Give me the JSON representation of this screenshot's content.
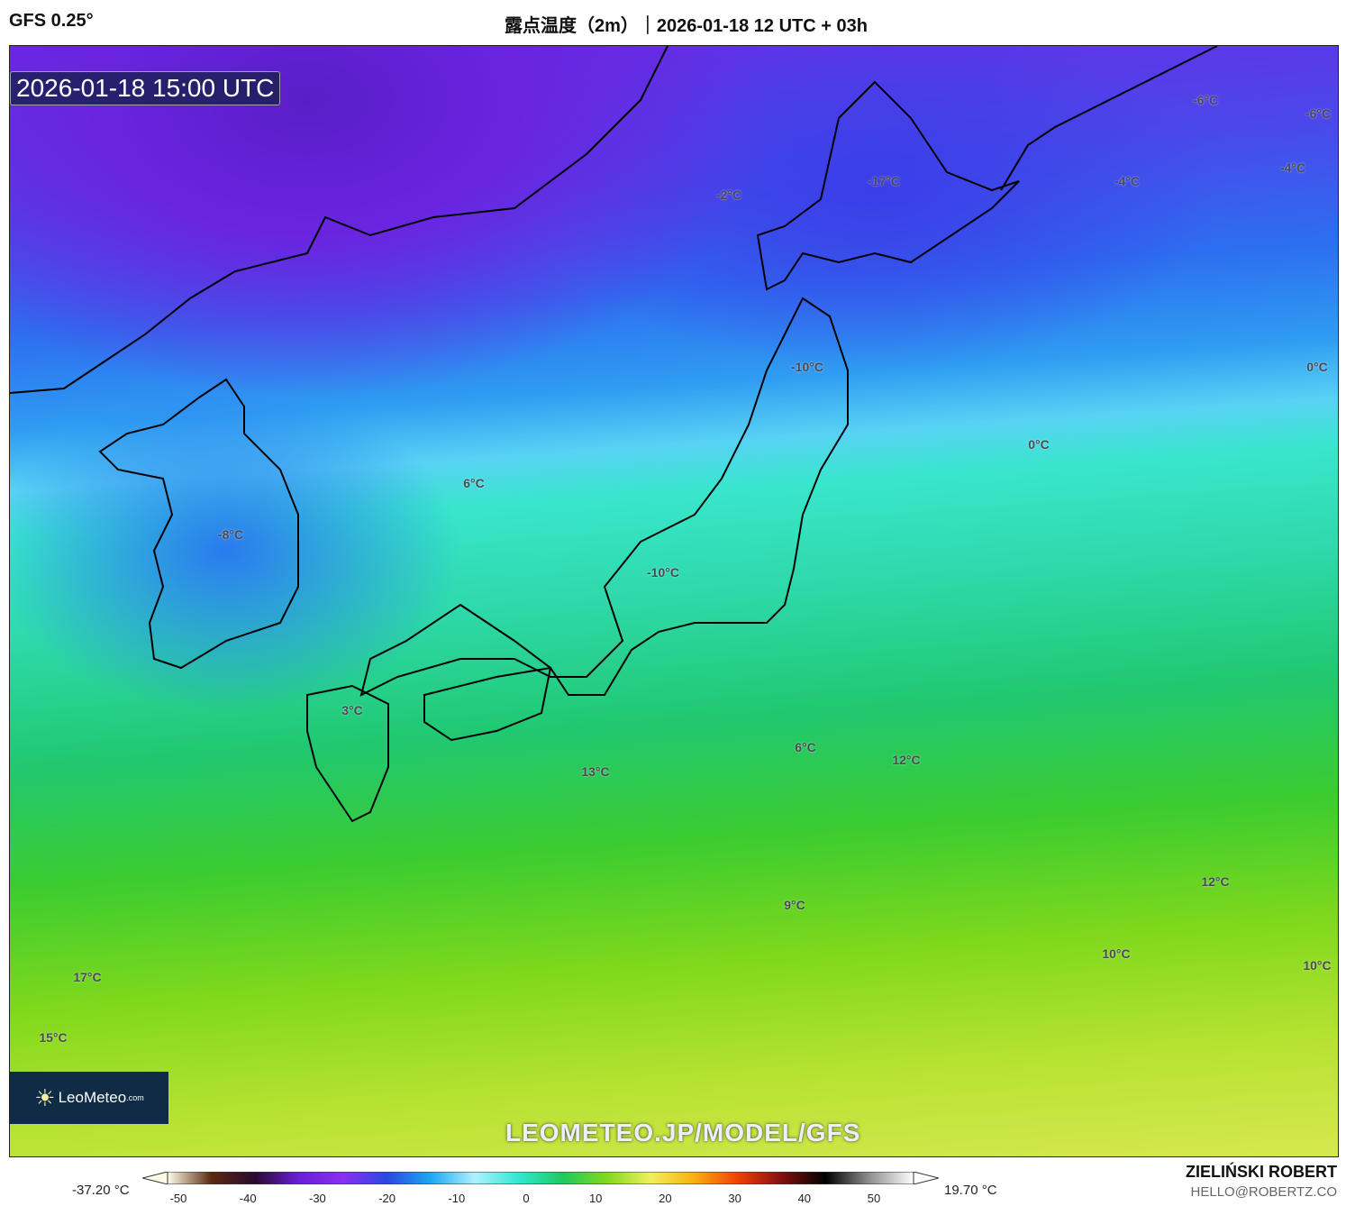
{
  "header": {
    "model": "GFS 0.25°",
    "title": "露点温度（2m）｜2026-01-18 12 UTC + 03h"
  },
  "map": {
    "valid_time": "2026-01-18 15:00 UTC",
    "labels": [
      "-6°C",
      "-6°C",
      "-2°C",
      "-17°C",
      "-4°C",
      "-4°C",
      "-10°C",
      "0°C",
      "0°C",
      "6°C",
      "-8°C",
      "-10°C",
      "3°C",
      "6°C",
      "13°C",
      "12°C",
      "12°C",
      "9°C",
      "10°C",
      "10°C",
      "17°C",
      "15°C"
    ],
    "watermark": "LEOMETEO.JP/MODEL/GFS",
    "logo": {
      "name": "LeoMeteo",
      "suffix": ".com",
      "icon": "sun-icon"
    }
  },
  "colorbar": {
    "min_value": "-37.20 °C",
    "max_value": "19.70 °C",
    "ticks": [
      "-50",
      "-40",
      "-30",
      "-20",
      "-10",
      "0",
      "10",
      "20",
      "30",
      "40",
      "50"
    ],
    "stops": [
      "#fffbe6",
      "#5a2a10",
      "#2a0a30",
      "#6a1fd8",
      "#8a30f0",
      "#2a48e0",
      "#20a8f0",
      "#b0f0ff",
      "#30e8d0",
      "#20c860",
      "#80d820",
      "#f0f060",
      "#f8b010",
      "#f04008",
      "#801010",
      "#000000",
      "#909090",
      "#ffffff"
    ]
  },
  "credit": {
    "author": "ZIELIŃSKI ROBERT",
    "email": "HELLO@ROBERTZ.CO"
  }
}
